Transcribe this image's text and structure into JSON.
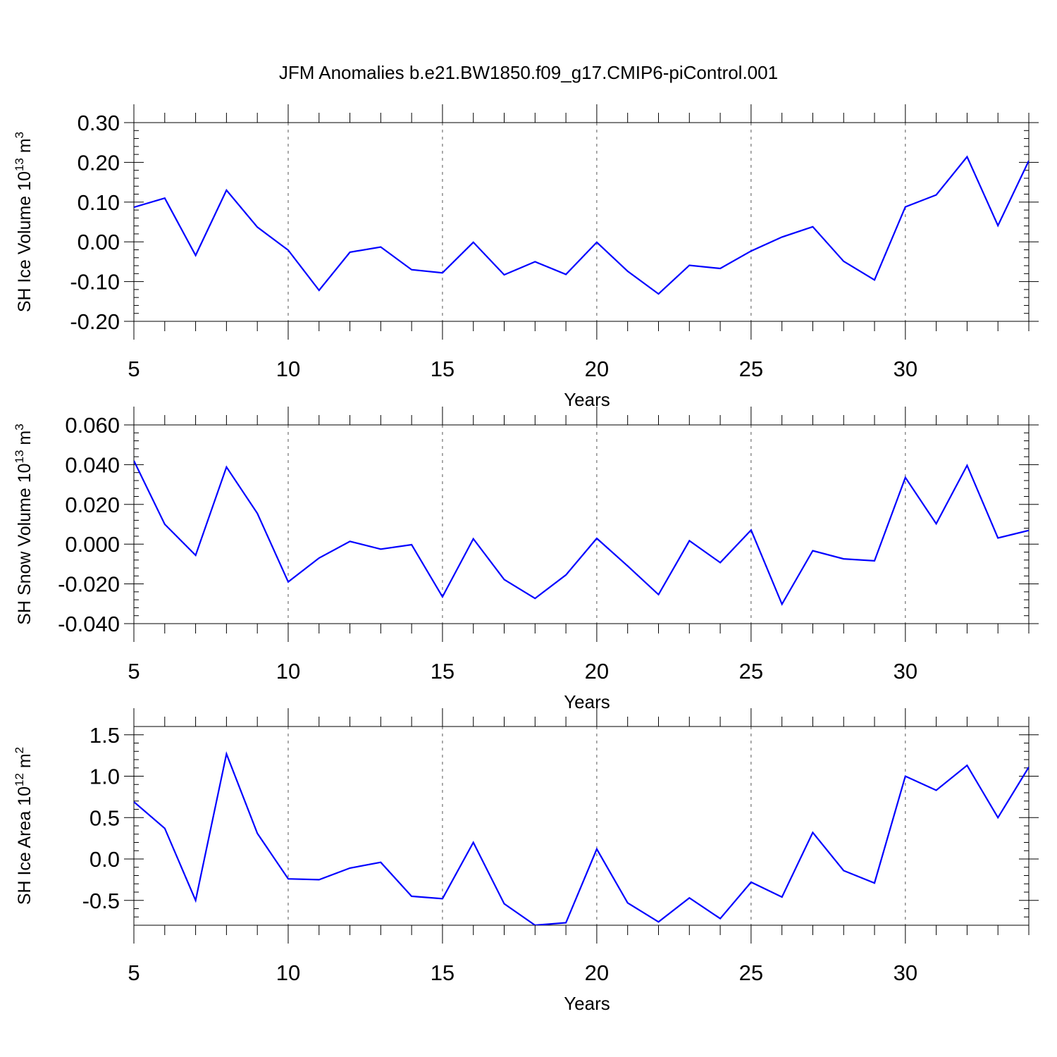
{
  "title": "JFM Anomalies b.e21.BW1850.f09_g17.CMIP6-piControl.001",
  "colors": {
    "line": "#0000ff",
    "axes": "#000000",
    "grid": "#555555"
  },
  "chart_data": [
    {
      "type": "line",
      "ylabel_main": "SH Ice Volume 10",
      "ylabel_exp": "13",
      "ylabel_unit": " m",
      "ylabel_unit_exp": "3",
      "xlabel": "Years",
      "xlim": [
        5,
        34
      ],
      "ylim": [
        -0.2,
        0.3
      ],
      "yticks": [
        -0.2,
        -0.1,
        0.0,
        0.1,
        0.2,
        0.3
      ],
      "ytick_labels": [
        "-0.20",
        "-0.10",
        "0.00",
        "0.10",
        "0.20",
        "0.30"
      ],
      "yminor_step": 0.02,
      "xticks": [
        5,
        10,
        15,
        20,
        25,
        30
      ],
      "xtick_labels": [
        "5",
        "10",
        "15",
        "20",
        "25",
        "30"
      ],
      "grid_x": [
        10,
        15,
        20,
        25,
        30
      ],
      "x": [
        5,
        6,
        7,
        8,
        9,
        10,
        11,
        12,
        13,
        14,
        15,
        16,
        17,
        18,
        19,
        20,
        21,
        22,
        23,
        24,
        25,
        26,
        27,
        28,
        29,
        30,
        31,
        32,
        33,
        34
      ],
      "values": [
        0.087,
        0.11,
        -0.034,
        0.13,
        0.037,
        -0.021,
        -0.122,
        -0.026,
        -0.013,
        -0.07,
        -0.078,
        -0.001,
        -0.083,
        -0.05,
        -0.082,
        -0.001,
        -0.074,
        -0.131,
        -0.059,
        -0.067,
        -0.023,
        0.012,
        0.038,
        -0.049,
        -0.096,
        0.088,
        0.118,
        0.214,
        0.041,
        0.204
      ]
    },
    {
      "type": "line",
      "ylabel_main": "SH Snow Volume 10",
      "ylabel_exp": "13",
      "ylabel_unit": " m",
      "ylabel_unit_exp": "3",
      "xlabel": "Years",
      "xlim": [
        5,
        34
      ],
      "ylim": [
        -0.04,
        0.06
      ],
      "yticks": [
        -0.04,
        -0.02,
        0.0,
        0.02,
        0.04,
        0.06
      ],
      "ytick_labels": [
        "-0.040",
        "-0.020",
        "0.000",
        "0.020",
        "0.040",
        "0.060"
      ],
      "yminor_step": 0.004,
      "xticks": [
        5,
        10,
        15,
        20,
        25,
        30
      ],
      "xtick_labels": [
        "5",
        "10",
        "15",
        "20",
        "25",
        "30"
      ],
      "grid_x": [
        10,
        15,
        20,
        25,
        30
      ],
      "x": [
        5,
        6,
        7,
        8,
        9,
        10,
        11,
        12,
        13,
        14,
        15,
        16,
        17,
        18,
        19,
        20,
        21,
        22,
        23,
        24,
        25,
        26,
        27,
        28,
        29,
        30,
        31,
        32,
        33,
        34
      ],
      "values": [
        0.042,
        0.01,
        -0.0056,
        0.0388,
        0.0155,
        -0.019,
        -0.007,
        0.0014,
        -0.0025,
        -0.0003,
        -0.0265,
        0.0027,
        -0.0178,
        -0.0273,
        -0.0155,
        0.0029,
        -0.011,
        -0.0254,
        0.0017,
        -0.0093,
        0.0071,
        -0.0302,
        -0.0033,
        -0.0074,
        -0.0084,
        0.0335,
        0.0103,
        0.0396,
        0.0031,
        0.0069
      ]
    },
    {
      "type": "line",
      "ylabel_main": "SH Ice Area 10",
      "ylabel_exp": "12",
      "ylabel_unit": " m",
      "ylabel_unit_exp": "2",
      "xlabel": "Years",
      "xlim": [
        5,
        34
      ],
      "ylim": [
        -0.8,
        1.6
      ],
      "yticks": [
        -0.5,
        0.0,
        0.5,
        1.0,
        1.5
      ],
      "ytick_labels": [
        "-0.5",
        "0.0",
        "0.5",
        "1.0",
        "1.5"
      ],
      "yminor_step": 0.1,
      "xticks": [
        5,
        10,
        15,
        20,
        25,
        30
      ],
      "xtick_labels": [
        "5",
        "10",
        "15",
        "20",
        "25",
        "30"
      ],
      "grid_x": [
        10,
        15,
        20,
        25,
        30
      ],
      "x": [
        5,
        6,
        7,
        8,
        9,
        10,
        11,
        12,
        13,
        14,
        15,
        16,
        17,
        18,
        19,
        20,
        21,
        22,
        23,
        24,
        25,
        26,
        27,
        28,
        29,
        30,
        31,
        32,
        33,
        34
      ],
      "values": [
        0.69,
        0.37,
        -0.5,
        1.27,
        0.31,
        -0.24,
        -0.25,
        -0.11,
        -0.04,
        -0.45,
        -0.48,
        0.2,
        -0.54,
        -0.8,
        -0.77,
        0.12,
        -0.53,
        -0.76,
        -0.47,
        -0.72,
        -0.28,
        -0.46,
        0.32,
        -0.14,
        -0.29,
        1.0,
        0.83,
        1.13,
        0.5,
        1.11
      ]
    }
  ]
}
